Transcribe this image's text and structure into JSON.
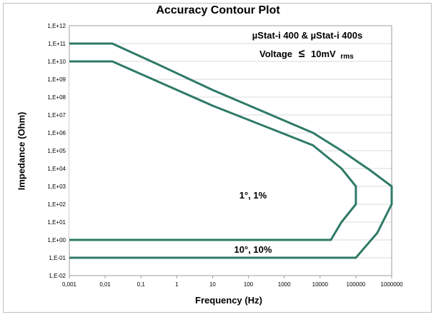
{
  "chart_data": {
    "type": "line",
    "title": "Accuracy Contour Plot",
    "xlabel": "Frequency (Hz)",
    "ylabel": "Impedance (Ohm)",
    "x_scale": "log",
    "y_scale": "log",
    "xlim": [
      0.001,
      1000000
    ],
    "ylim": [
      0.01,
      1000000000000
    ],
    "x_ticks": [
      "0,001",
      "0,01",
      "0,1",
      "1",
      "10",
      "100",
      "1000",
      "10000",
      "100000",
      "1000000"
    ],
    "y_ticks": [
      "1,E-02",
      "1,E-01",
      "1,E+00",
      "1,E+01",
      "1,E+02",
      "1,E+03",
      "1,E+04",
      "1,E+05",
      "1,E+06",
      "1,E+07",
      "1,E+08",
      "1,E+09",
      "1,E+10",
      "1,E+11",
      "1,E+12"
    ],
    "grid": "horizontal",
    "contour_color": "#2e7a67",
    "series": [
      {
        "name": "10°, 10%",
        "x": [
          0.001,
          0.0158,
          0.251,
          10,
          6310,
          39800,
          251000,
          1000000,
          1000000,
          398000,
          100000,
          0.001
        ],
        "y": [
          100000000000,
          100000000000,
          7940000000,
          251000000,
          1000000,
          100000,
          7940,
          1000,
          100,
          2.5,
          0.1,
          0.1
        ]
      },
      {
        "name": "1°, 1%",
        "x": [
          0.001,
          0.0158,
          10,
          6310,
          39800,
          100000,
          100000,
          39800,
          20000,
          0.001
        ],
        "y": [
          10000000000,
          10000000000,
          33100000,
          200000,
          10000,
          1000,
          100,
          10,
          1,
          1
        ]
      }
    ],
    "annotations": {
      "device": "µStat-i 400 & µStat-i 400s",
      "voltage_prefix": "Voltage",
      "voltage_symbol": "≤",
      "voltage_value": "10mV",
      "voltage_unit": "rms",
      "inner_label": "1°, 1%",
      "outer_label": "10°, 10%"
    }
  }
}
